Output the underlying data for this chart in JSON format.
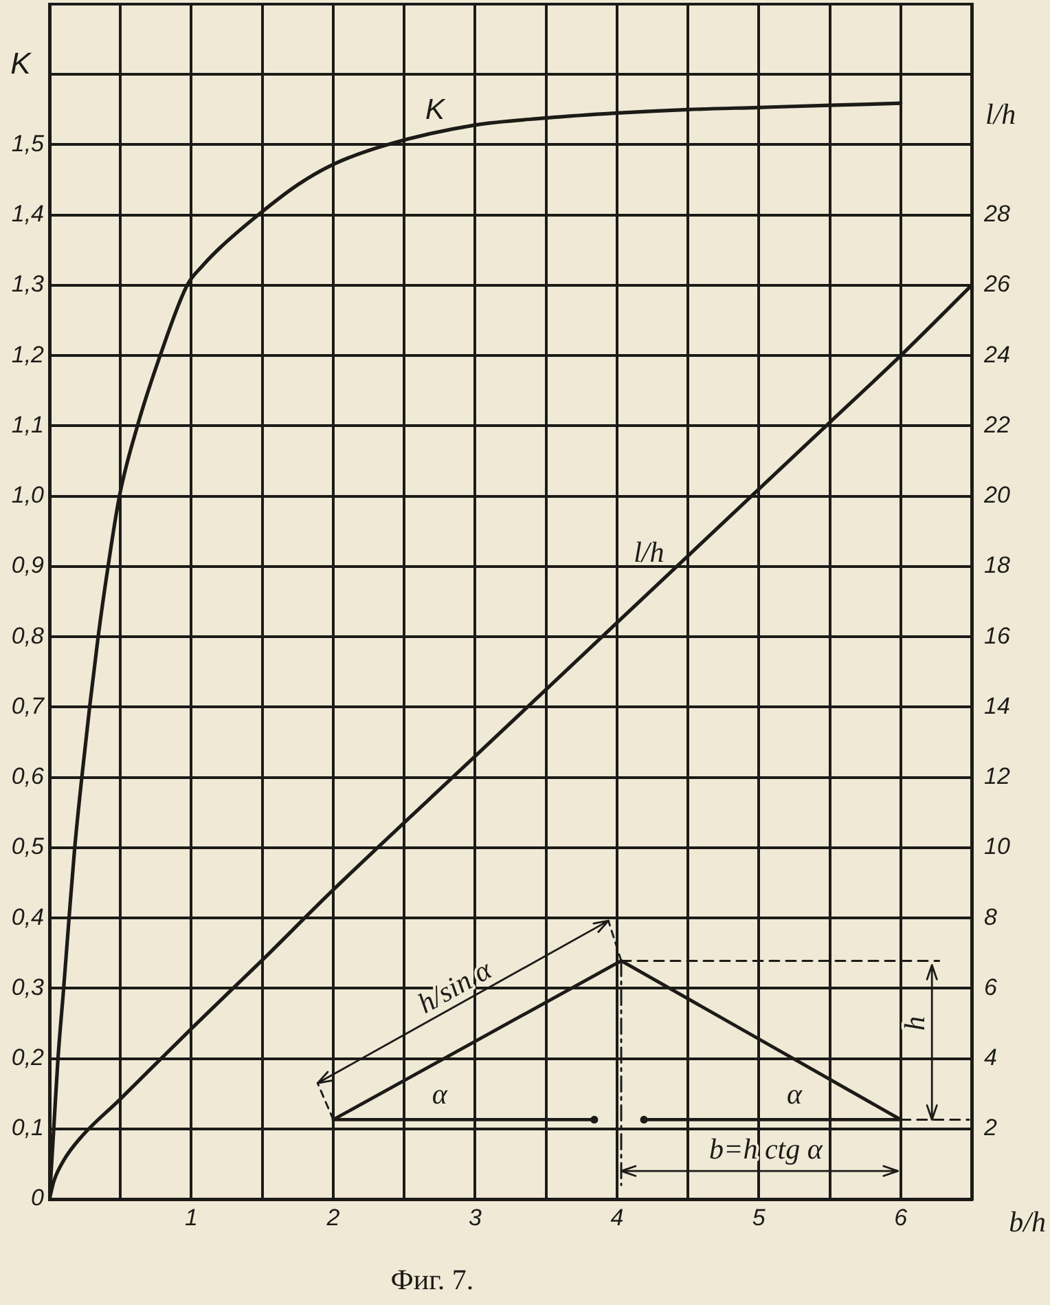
{
  "chart_data": {
    "type": "line",
    "xlabel": "b/h",
    "ylabel": "K",
    "y2label": "l/h",
    "xlim": [
      0,
      6.5
    ],
    "xticks": [
      {
        "value": 0,
        "label": null
      },
      {
        "value": 0.5,
        "label": null
      },
      1,
      {
        "value": 1.5,
        "label": null
      },
      2,
      {
        "value": 2.5,
        "label": null
      },
      3,
      {
        "value": 3.5,
        "label": null
      },
      4,
      {
        "value": 4.5,
        "label": null
      },
      5,
      {
        "value": 5.5,
        "label": null
      },
      6,
      {
        "value": 6.5,
        "label": null
      }
    ],
    "ylim": [
      0,
      1.7
    ],
    "yticks": [
      0,
      {
        "value": 0.1,
        "label": "0,1"
      },
      {
        "value": 0.2,
        "label": "0,2"
      },
      {
        "value": 0.3,
        "label": "0,3"
      },
      {
        "value": 0.4,
        "label": "0,4"
      },
      {
        "value": 0.5,
        "label": "0,5"
      },
      {
        "value": 0.6,
        "label": "0,6"
      },
      {
        "value": 0.7,
        "label": "0,7"
      },
      {
        "value": 0.8,
        "label": "0,8"
      },
      {
        "value": 0.9,
        "label": "0,9"
      },
      {
        "value": 1.0,
        "label": "1,0"
      },
      {
        "value": 1.1,
        "label": "1,1"
      },
      {
        "value": 1.2,
        "label": "1,2"
      },
      {
        "value": 1.3,
        "label": "1,3"
      },
      {
        "value": 1.4,
        "label": "1,4"
      },
      {
        "value": 1.5,
        "label": "1,5"
      },
      {
        "value": 1.6,
        "label": null
      },
      {
        "value": 1.7,
        "label": null
      }
    ],
    "y2lim": [
      0,
      34
    ],
    "y2ticks": [
      2,
      4,
      6,
      8,
      10,
      12,
      14,
      16,
      18,
      20,
      22,
      24,
      26,
      28
    ],
    "grid": true,
    "line_style": "solid",
    "series": [
      {
        "name": "K",
        "color": "#1d1b18",
        "x": [
          0,
          0.03,
          0.06,
          0.1,
          0.138,
          0.178,
          0.228,
          0.283,
          0.343,
          0.413,
          0.493,
          0.62,
          0.78,
          0.97,
          1.08,
          1.2,
          1.47,
          1.75,
          2.0,
          2.38,
          3.0,
          3.5,
          4.0,
          4.5,
          5.0,
          5.5,
          6.0
        ],
        "values": [
          0,
          0.1,
          0.2,
          0.3,
          0.4,
          0.5,
          0.6,
          0.7,
          0.8,
          0.9,
          1.0,
          1.1,
          1.2,
          1.3,
          1.328,
          1.353,
          1.4,
          1.443,
          1.472,
          1.5,
          1.528,
          1.538,
          1.545,
          1.55,
          1.553,
          1.556,
          1.559
        ]
      },
      {
        "name": "l/h",
        "color": "#1d1b18",
        "axis": "y2",
        "x": [
          0,
          0.03,
          0.1,
          0.22,
          0.5,
          1.0,
          1.5,
          2.0,
          3.0,
          4.0,
          5.0,
          5.5,
          6.0,
          6.5
        ],
        "values": [
          0,
          0.5,
          1.1,
          1.75,
          2.85,
          4.85,
          6.8,
          8.8,
          12.6,
          16.4,
          20.2,
          22.1,
          24.0,
          26.0
        ]
      }
    ],
    "annotations": [
      "h/sin α",
      "α",
      "α",
      "b=h ctg α",
      "h",
      "Фиг. 7."
    ]
  }
}
